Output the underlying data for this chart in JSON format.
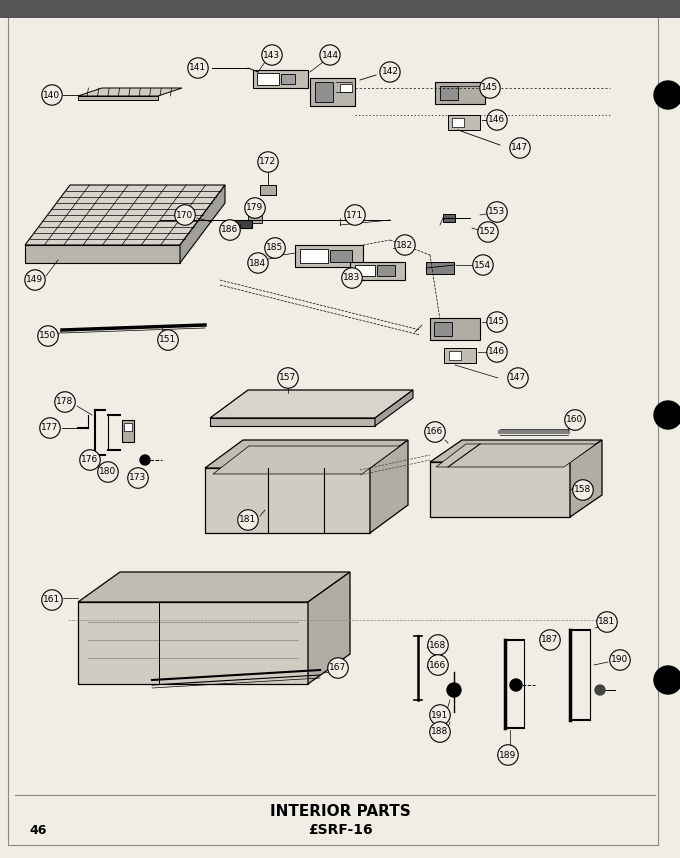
{
  "title": "INTERIOR PARTS",
  "subtitle": "£SRF-16",
  "page_number": "46",
  "bg_color": "#f0ede5",
  "fig_width": 6.8,
  "fig_height": 8.58,
  "dpi": 100
}
